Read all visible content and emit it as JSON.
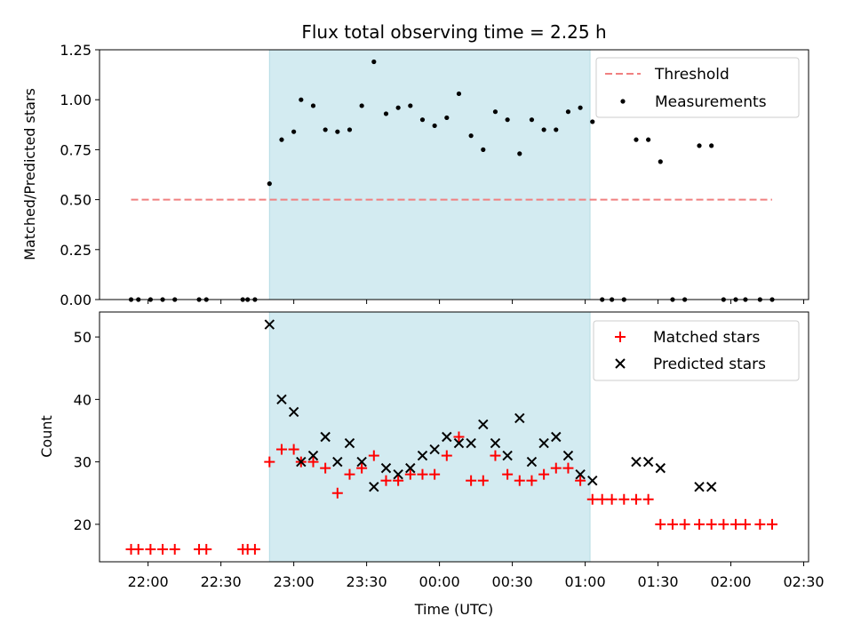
{
  "chart_data": [
    {
      "type": "scatter",
      "title": "Flux total observing time = 2.25 h",
      "xlabel": "",
      "ylabel": "Matched/Predicted stars",
      "ylim": [
        0,
        1.25
      ],
      "yticks": [
        "0.00",
        "0.25",
        "0.50",
        "0.75",
        "1.00",
        "1.25"
      ],
      "xlim": [
        "21:40",
        "02:32"
      ],
      "shaded_span": [
        "22:50",
        "01:02"
      ],
      "legend_position": "top-right",
      "colors": {
        "shade": "#d3ebf1",
        "threshold": "#f08080",
        "measurements": "#000000"
      },
      "series": [
        {
          "name": "Threshold",
          "style": "dashed-line",
          "x": [
            "21:53",
            "02:17"
          ],
          "values": [
            0.5,
            0.5
          ]
        },
        {
          "name": "Measurements",
          "style": "dots",
          "x": [
            "21:53",
            "21:56",
            "22:01",
            "22:06",
            "22:11",
            "22:21",
            "22:24",
            "22:39",
            "22:41",
            "22:44",
            "22:50",
            "22:55",
            "23:00",
            "23:03",
            "23:08",
            "23:13",
            "23:18",
            "23:23",
            "23:28",
            "23:33",
            "23:38",
            "23:43",
            "23:48",
            "23:53",
            "23:58",
            "00:03",
            "00:08",
            "00:13",
            "00:18",
            "00:23",
            "00:28",
            "00:33",
            "00:38",
            "00:43",
            "00:48",
            "00:53",
            "00:58",
            "01:03",
            "01:07",
            "01:11",
            "01:16",
            "01:21",
            "01:26",
            "01:31",
            "01:36",
            "01:41",
            "01:47",
            "01:52",
            "01:57",
            "02:02",
            "02:06",
            "02:12",
            "02:17"
          ],
          "values": [
            0,
            0,
            0,
            0,
            0,
            0,
            0,
            0,
            0,
            0,
            0.58,
            0.8,
            0.84,
            1.0,
            0.97,
            0.85,
            0.84,
            0.85,
            0.97,
            1.19,
            0.93,
            0.96,
            0.97,
            0.9,
            0.87,
            0.91,
            1.03,
            0.82,
            0.75,
            0.94,
            0.9,
            0.73,
            0.9,
            0.85,
            0.85,
            0.94,
            0.96,
            0.89,
            0,
            0,
            0,
            0.8,
            0.8,
            0.69,
            0,
            0,
            0.77,
            0.77,
            0,
            0,
            0,
            0,
            0
          ]
        }
      ]
    },
    {
      "type": "scatter",
      "title": "",
      "xlabel": "Time (UTC)",
      "ylabel": "Count",
      "ylim": [
        14,
        54
      ],
      "yticks": [
        "20",
        "30",
        "40",
        "50"
      ],
      "xlim": [
        "21:40",
        "02:32"
      ],
      "xticks": [
        "22:00",
        "22:30",
        "23:00",
        "23:30",
        "00:00",
        "00:30",
        "01:00",
        "01:30",
        "02:00",
        "02:30"
      ],
      "shaded_span": [
        "22:50",
        "01:02"
      ],
      "legend_position": "top-right",
      "colors": {
        "shade": "#d3ebf1",
        "matched": "#ff0000",
        "predicted": "#000000"
      },
      "series": [
        {
          "name": "Matched stars",
          "marker": "plus",
          "x": [
            "21:53",
            "21:56",
            "22:01",
            "22:06",
            "22:11",
            "22:21",
            "22:24",
            "22:39",
            "22:41",
            "22:44",
            "22:50",
            "22:55",
            "23:00",
            "23:03",
            "23:08",
            "23:13",
            "23:18",
            "23:23",
            "23:28",
            "23:33",
            "23:38",
            "23:43",
            "23:48",
            "23:53",
            "23:58",
            "00:03",
            "00:08",
            "00:13",
            "00:18",
            "00:23",
            "00:28",
            "00:33",
            "00:38",
            "00:43",
            "00:48",
            "00:53",
            "00:58",
            "01:03",
            "01:07",
            "01:11",
            "01:16",
            "01:21",
            "01:26",
            "01:31",
            "01:36",
            "01:41",
            "01:47",
            "01:52",
            "01:57",
            "02:02",
            "02:06",
            "02:12",
            "02:17"
          ],
          "values": [
            16,
            16,
            16,
            16,
            16,
            16,
            16,
            16,
            16,
            16,
            30,
            32,
            32,
            30,
            30,
            29,
            25,
            28,
            29,
            31,
            27,
            27,
            28,
            28,
            28,
            31,
            34,
            27,
            27,
            31,
            28,
            27,
            27,
            28,
            29,
            29,
            27,
            24,
            24,
            24,
            24,
            24,
            24,
            20,
            20,
            20,
            20,
            20,
            20,
            20,
            20,
            20,
            20
          ]
        },
        {
          "name": "Predicted stars",
          "marker": "x",
          "x": [
            "22:50",
            "22:55",
            "23:00",
            "23:03",
            "23:08",
            "23:13",
            "23:18",
            "23:23",
            "23:28",
            "23:33",
            "23:38",
            "23:43",
            "23:48",
            "23:53",
            "23:58",
            "00:03",
            "00:08",
            "00:13",
            "00:18",
            "00:23",
            "00:28",
            "00:33",
            "00:38",
            "00:43",
            "00:48",
            "00:53",
            "00:58",
            "01:03",
            "01:21",
            "01:26",
            "01:31",
            "01:47",
            "01:52"
          ],
          "values": [
            52,
            40,
            38,
            30,
            31,
            34,
            30,
            33,
            30,
            26,
            29,
            28,
            29,
            31,
            32,
            34,
            33,
            33,
            36,
            33,
            31,
            37,
            30,
            33,
            34,
            31,
            28,
            27,
            30,
            30,
            29,
            26,
            26
          ]
        }
      ]
    }
  ]
}
